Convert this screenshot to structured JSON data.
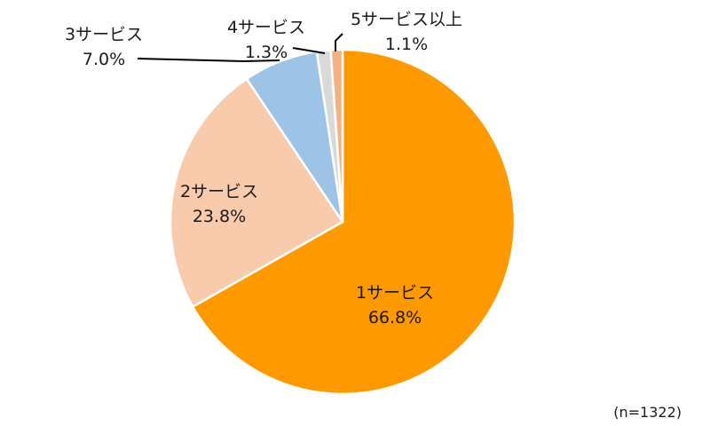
{
  "chart_data": {
    "type": "pie",
    "title": "",
    "start_angle_deg": 0,
    "direction": "clockwise",
    "slices": [
      {
        "name": "1サービス",
        "value": 66.8,
        "value_label": "66.8%",
        "color": "#FF9900"
      },
      {
        "name": "2サービス",
        "value": 23.8,
        "value_label": "23.8%",
        "color": "#F8CBAD"
      },
      {
        "name": "3サービス",
        "value": 7.0,
        "value_label": "7.0%",
        "color": "#9DC3E6"
      },
      {
        "name": "4サービス",
        "value": 1.3,
        "value_label": "1.3%",
        "color": "#D9D9D9"
      },
      {
        "name": "5サービス以上",
        "value": 1.1,
        "value_label": "1.1%",
        "color": "#F4B183"
      }
    ],
    "sample_note": "(n=1322)",
    "legend": "none"
  }
}
